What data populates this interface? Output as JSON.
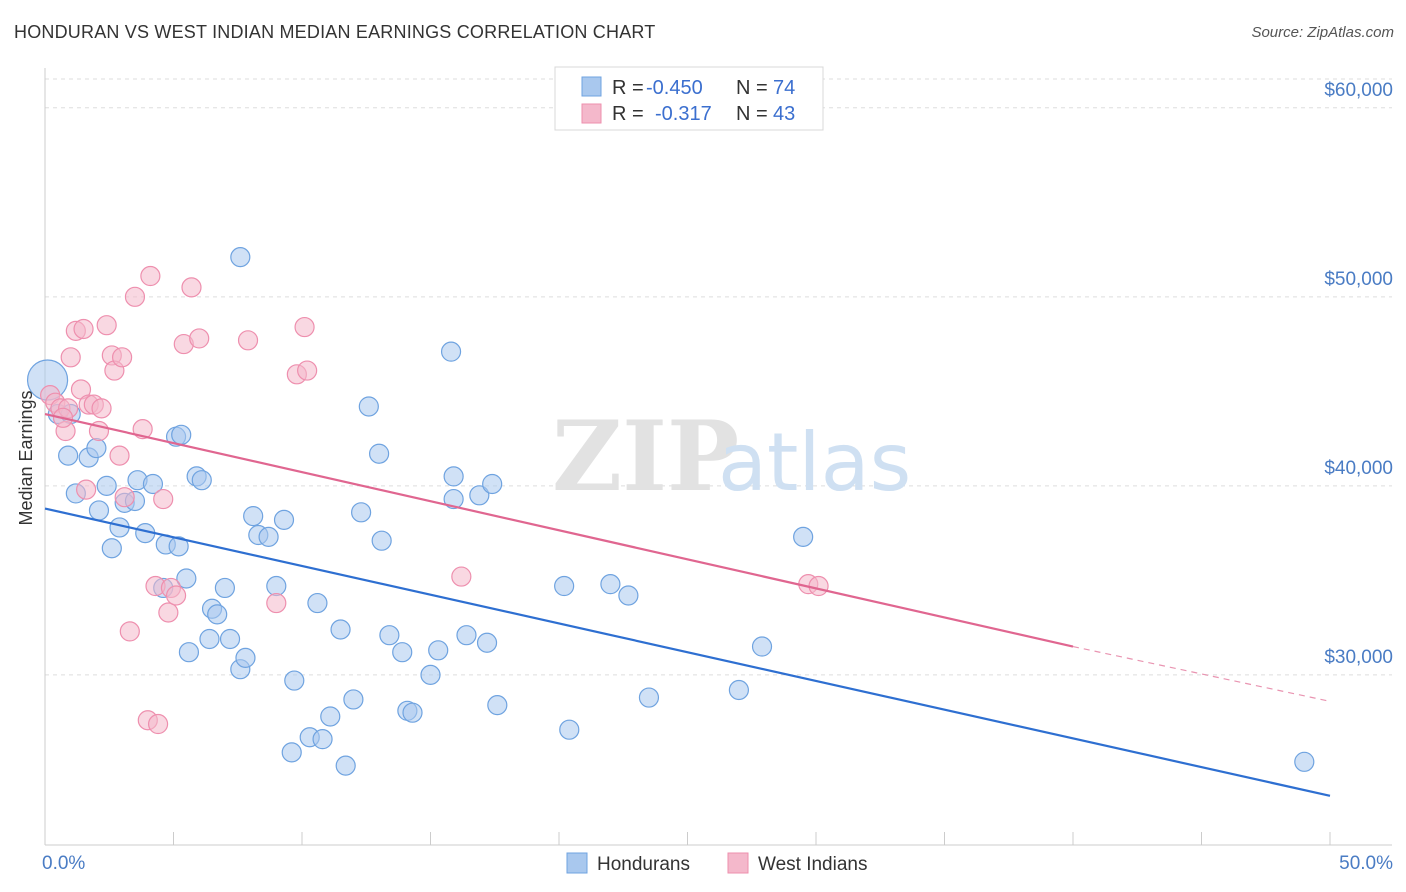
{
  "header": {
    "title": "HONDURAN VS WEST INDIAN MEDIAN EARNINGS CORRELATION CHART",
    "source": "Source: ZipAtlas.com"
  },
  "watermark": {
    "zip": "ZIP",
    "atlas": "atlas"
  },
  "legend": {
    "rows": [
      {
        "r_label": "R = ",
        "r_value": "-0.450",
        "n_label": "N = ",
        "n_value": "74",
        "color": "#a9c8ee"
      },
      {
        "r_label": "R = ",
        "r_value": "-0.317",
        "n_label": "N = ",
        "n_value": "43",
        "color": "#f4b8cb"
      }
    ]
  },
  "bottom_legend": [
    {
      "label": "Hondurans",
      "color": "#a9c8ee"
    },
    {
      "label": "West Indians",
      "color": "#f4b8cb"
    }
  ],
  "chart_data": {
    "type": "scatter",
    "title": "HONDURAN VS WEST INDIAN MEDIAN EARNINGS CORRELATION CHART",
    "xlabel": "",
    "ylabel": "Median Earnings",
    "xlim": [
      0,
      50
    ],
    "ylim": [
      21000,
      62000
    ],
    "x_tick_labels": [
      "0.0%",
      "50.0%"
    ],
    "y_ticks": [
      {
        "value": 30000,
        "label": "$30,000"
      },
      {
        "value": 40000,
        "label": "$40,000"
      },
      {
        "value": 50000,
        "label": "$50,000"
      },
      {
        "value": 60000,
        "label": "$60,000"
      }
    ],
    "grid": true,
    "legend_position": "top-center",
    "series": [
      {
        "name": "Hondurans",
        "color": "#6fa3e0",
        "fill": "#a9c8ee",
        "r": -0.45,
        "n": 74,
        "trend": {
          "x0": 0,
          "y0": 38800,
          "x1": 50,
          "y1": 23600
        },
        "points": [
          [
            0.1,
            45600
          ],
          [
            0.5,
            43800
          ],
          [
            0.9,
            41600
          ],
          [
            1.7,
            41500
          ],
          [
            1.2,
            39600
          ],
          [
            2.1,
            38700
          ],
          [
            2.4,
            40000
          ],
          [
            2.6,
            36700
          ],
          [
            2.9,
            37800
          ],
          [
            3.1,
            39100
          ],
          [
            3.6,
            40300
          ],
          [
            3.9,
            37500
          ],
          [
            4.2,
            40100
          ],
          [
            4.6,
            34600
          ],
          [
            4.7,
            36900
          ],
          [
            5.1,
            42600
          ],
          [
            5.2,
            36800
          ],
          [
            5.5,
            35100
          ],
          [
            5.6,
            31200
          ],
          [
            5.9,
            40500
          ],
          [
            6.1,
            40300
          ],
          [
            6.4,
            31900
          ],
          [
            6.5,
            33500
          ],
          [
            6.7,
            33200
          ],
          [
            7.0,
            34600
          ],
          [
            7.2,
            31900
          ],
          [
            7.6,
            30300
          ],
          [
            7.8,
            30900
          ],
          [
            7.6,
            52100
          ],
          [
            8.1,
            38400
          ],
          [
            8.3,
            37400
          ],
          [
            8.7,
            37300
          ],
          [
            9.0,
            34700
          ],
          [
            9.3,
            38200
          ],
          [
            9.6,
            25900
          ],
          [
            9.7,
            29700
          ],
          [
            10.3,
            26700
          ],
          [
            10.6,
            33800
          ],
          [
            10.8,
            26600
          ],
          [
            11.1,
            27800
          ],
          [
            11.5,
            32400
          ],
          [
            11.7,
            25200
          ],
          [
            12.0,
            28700
          ],
          [
            12.3,
            38600
          ],
          [
            12.6,
            44200
          ],
          [
            13.0,
            41700
          ],
          [
            13.1,
            37100
          ],
          [
            13.4,
            32100
          ],
          [
            13.9,
            31200
          ],
          [
            14.1,
            28100
          ],
          [
            14.3,
            28000
          ],
          [
            15.0,
            30000
          ],
          [
            15.3,
            31300
          ],
          [
            15.8,
            47100
          ],
          [
            15.9,
            39300
          ],
          [
            16.4,
            32100
          ],
          [
            15.9,
            40500
          ],
          [
            16.9,
            39500
          ],
          [
            17.2,
            31700
          ],
          [
            17.4,
            40100
          ],
          [
            17.6,
            28400
          ],
          [
            20.4,
            27100
          ],
          [
            20.2,
            34700
          ],
          [
            22.0,
            34800
          ],
          [
            22.7,
            34200
          ],
          [
            23.5,
            28800
          ],
          [
            27.0,
            29200
          ],
          [
            27.9,
            31500
          ],
          [
            29.5,
            37300
          ],
          [
            49.0,
            25400
          ],
          [
            1.0,
            43800
          ],
          [
            3.5,
            39200
          ],
          [
            5.3,
            42700
          ],
          [
            2.0,
            42000
          ]
        ]
      },
      {
        "name": "West Indians",
        "color": "#ee8fae",
        "fill": "#f4b8cb",
        "r": -0.317,
        "n": 43,
        "trend": {
          "x0": 0,
          "y0": 43800,
          "x1": 40,
          "y1": 31500,
          "dash_x1": 50,
          "dash_y1": 28600
        },
        "points": [
          [
            0.2,
            44800
          ],
          [
            0.4,
            44400
          ],
          [
            0.6,
            44100
          ],
          [
            0.8,
            42900
          ],
          [
            0.9,
            44100
          ],
          [
            1.0,
            46800
          ],
          [
            1.2,
            48200
          ],
          [
            1.4,
            45100
          ],
          [
            1.5,
            48300
          ],
          [
            1.7,
            44300
          ],
          [
            1.9,
            44300
          ],
          [
            2.1,
            42900
          ],
          [
            2.2,
            44100
          ],
          [
            2.4,
            48500
          ],
          [
            2.6,
            46900
          ],
          [
            2.7,
            46100
          ],
          [
            2.9,
            41600
          ],
          [
            3.0,
            46800
          ],
          [
            3.1,
            39400
          ],
          [
            3.3,
            32300
          ],
          [
            3.5,
            50000
          ],
          [
            3.8,
            43000
          ],
          [
            4.0,
            27600
          ],
          [
            4.1,
            51100
          ],
          [
            4.3,
            34700
          ],
          [
            4.4,
            27400
          ],
          [
            4.6,
            39300
          ],
          [
            4.8,
            33300
          ],
          [
            4.9,
            34600
          ],
          [
            5.1,
            34200
          ],
          [
            5.4,
            47500
          ],
          [
            5.7,
            50500
          ],
          [
            6.0,
            47800
          ],
          [
            7.9,
            47700
          ],
          [
            9.0,
            33800
          ],
          [
            9.8,
            45900
          ],
          [
            10.2,
            46100
          ],
          [
            10.1,
            48400
          ],
          [
            16.2,
            35200
          ],
          [
            29.7,
            34800
          ],
          [
            30.1,
            34700
          ],
          [
            1.6,
            39800
          ],
          [
            0.7,
            43600
          ]
        ]
      }
    ]
  }
}
